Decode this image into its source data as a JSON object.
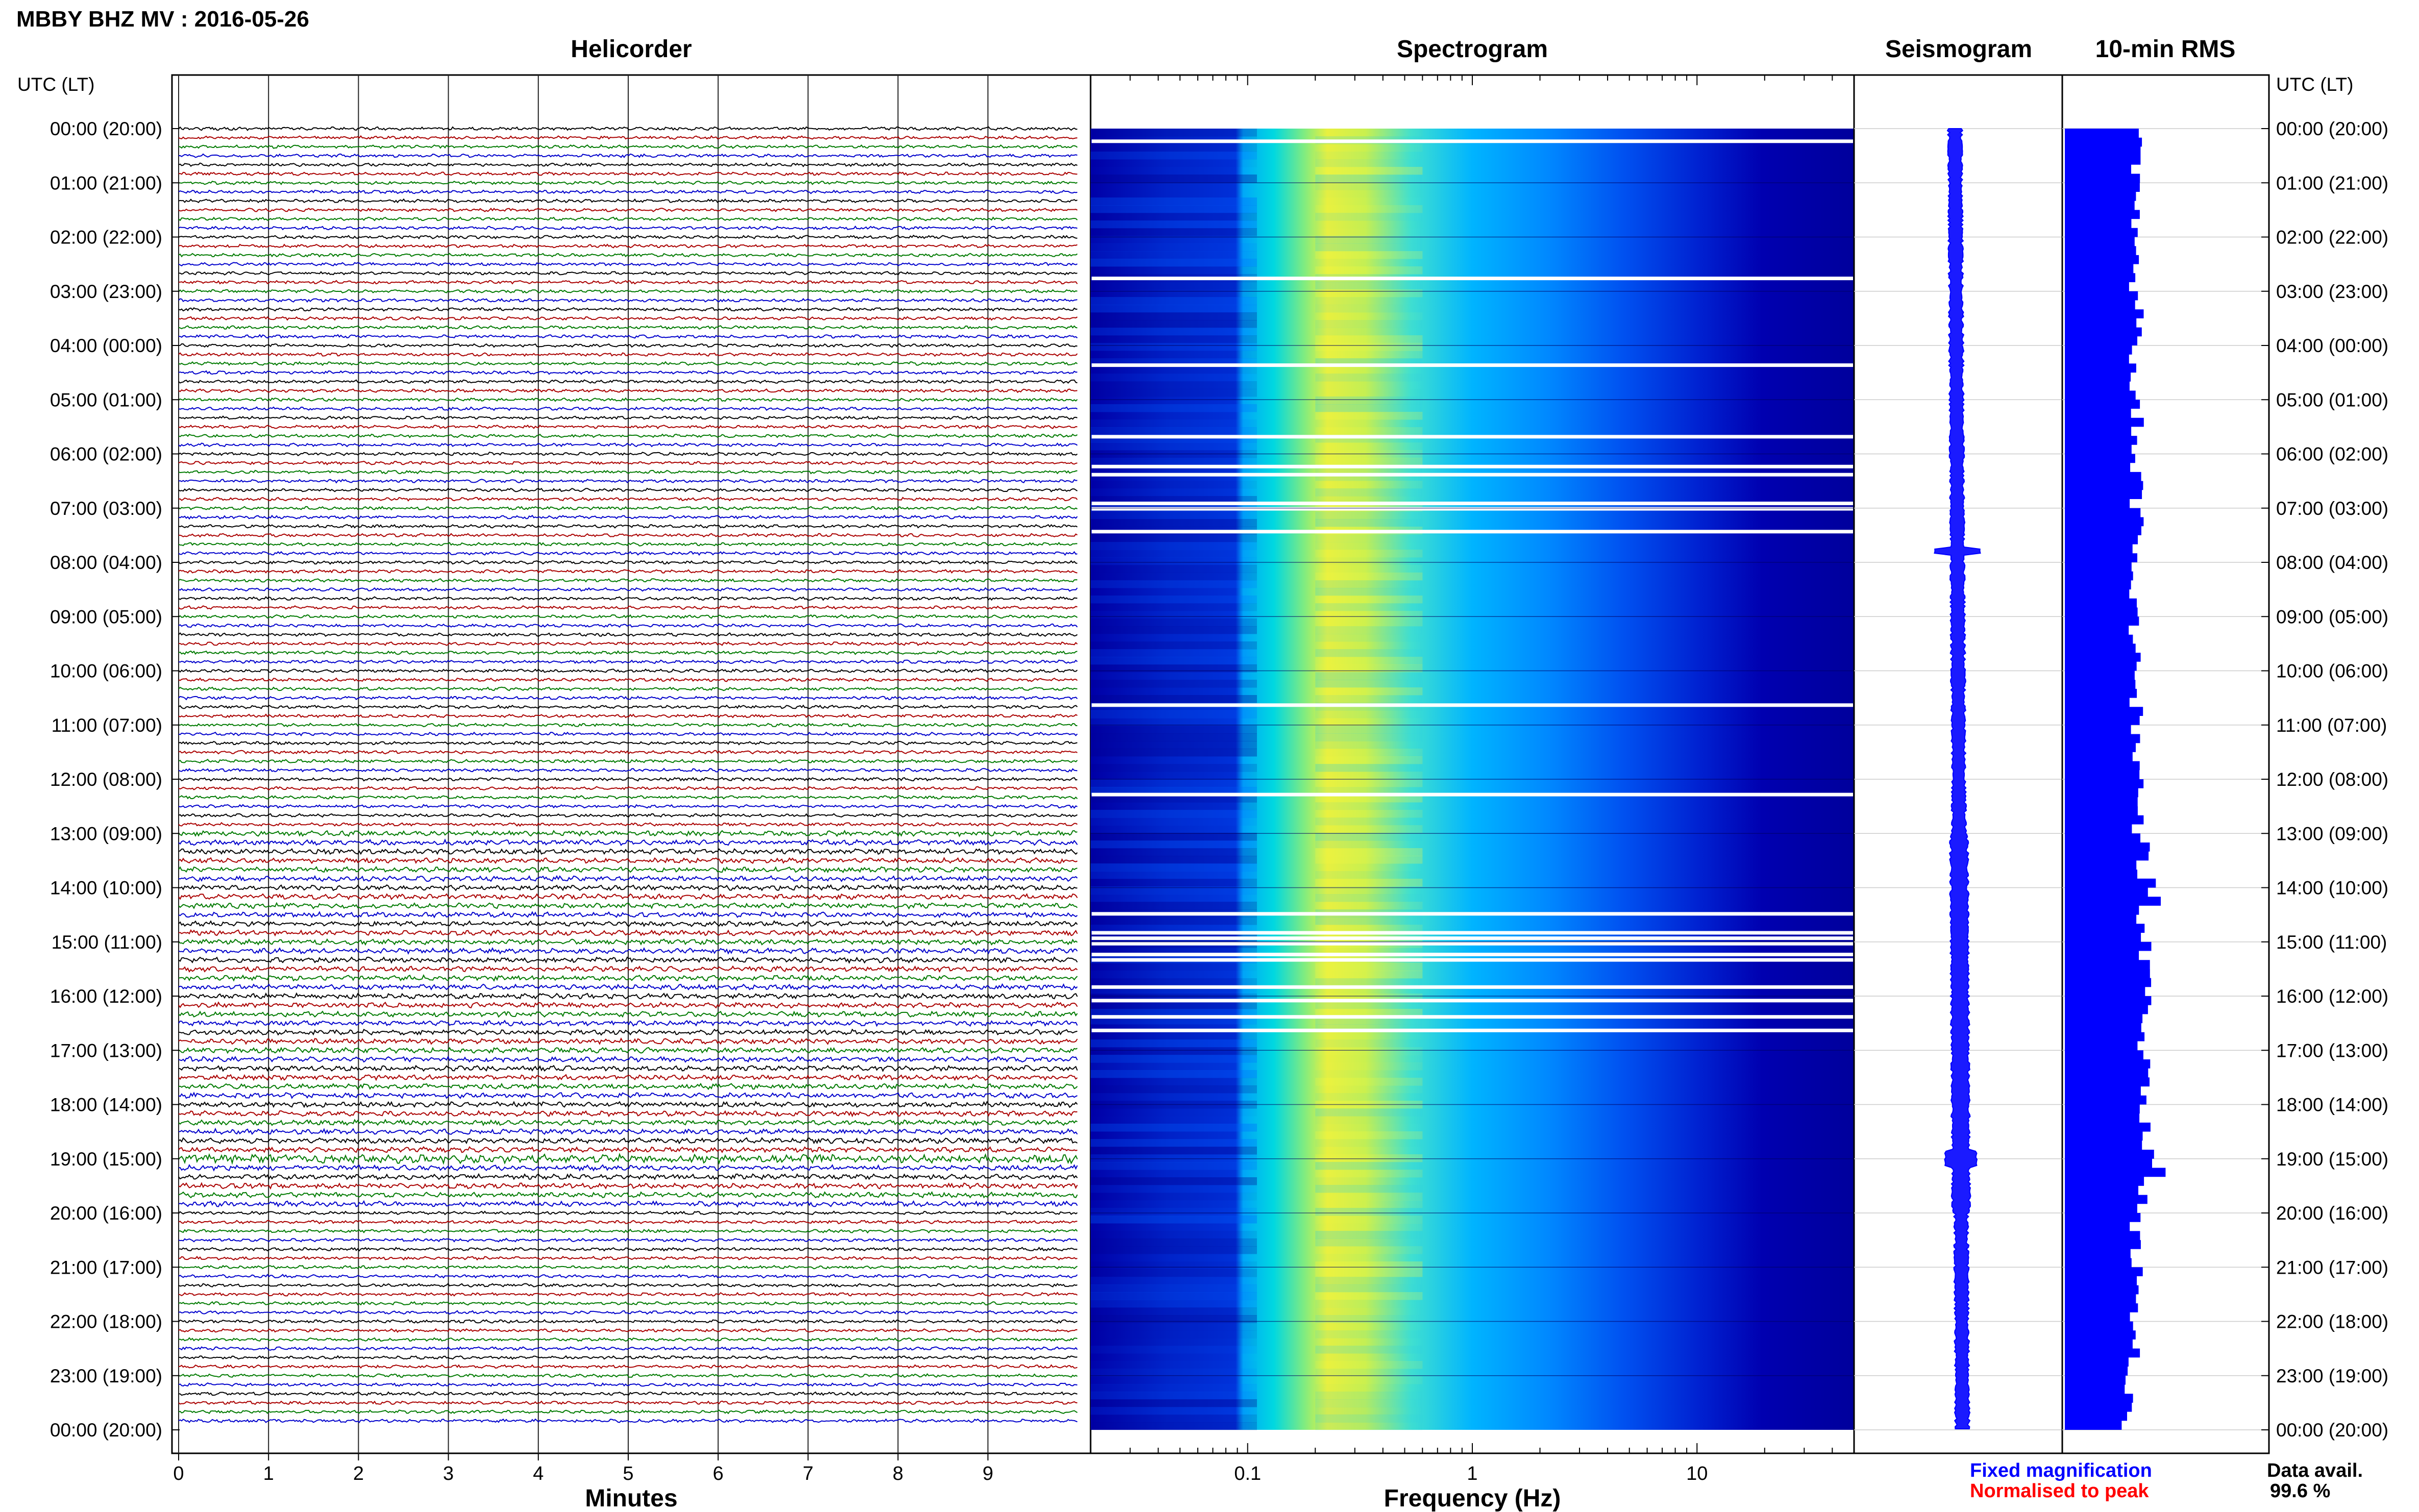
{
  "chart_data": {
    "type": "heatmap",
    "title": "MBBY BHZ MV : 2016-05-26",
    "panels": {
      "helicorder": {
        "title": "Helicorder",
        "xlabel": "Minutes",
        "x_ticks": [
          "0",
          "1",
          "2",
          "3",
          "4",
          "5",
          "6",
          "7",
          "8",
          "9"
        ],
        "xlim": [
          0,
          10
        ],
        "trace_colors": [
          "#000000",
          "#aa0000",
          "#007a00",
          "#0000cc"
        ],
        "trace_interval_minutes": 10
      },
      "spectrogram": {
        "title": "Spectrogram",
        "xlabel": "Frequency (Hz)",
        "x_scale": "log",
        "x_ticks": [
          "0.1",
          "1",
          "10"
        ],
        "xlim": [
          0.02,
          50
        ],
        "colormap": [
          "#0000a0",
          "#0044ee",
          "#00aaff",
          "#00e0d0",
          "#e8f040"
        ]
      },
      "seismogram": {
        "title": "Seismogram"
      },
      "rms": {
        "title": "10-min RMS",
        "series_color": "#0000ff"
      }
    },
    "y_axis_label": "UTC (LT)",
    "y_ticks": [
      "00:00 (20:00)",
      "01:00 (21:00)",
      "02:00 (22:00)",
      "03:00 (23:00)",
      "04:00 (00:00)",
      "05:00 (01:00)",
      "06:00 (02:00)",
      "07:00 (03:00)",
      "08:00 (04:00)",
      "09:00 (05:00)",
      "10:00 (06:00)",
      "11:00 (07:00)",
      "12:00 (08:00)",
      "13:00 (09:00)",
      "14:00 (10:00)",
      "15:00 (11:00)",
      "16:00 (12:00)",
      "17:00 (13:00)",
      "18:00 (14:00)",
      "19:00 (15:00)",
      "20:00 (16:00)",
      "21:00 (17:00)",
      "22:00 (18:00)",
      "23:00 (19:00)",
      "00:00 (20:00)"
    ],
    "grid": true,
    "legend": {
      "fixed": "Fixed magnification",
      "fixed_color": "#0000ff",
      "normalised": "Normalised to peak",
      "normalised_color": "#ff0000"
    },
    "data_availability": {
      "label": "Data avail.",
      "value": "99.6 %"
    }
  }
}
